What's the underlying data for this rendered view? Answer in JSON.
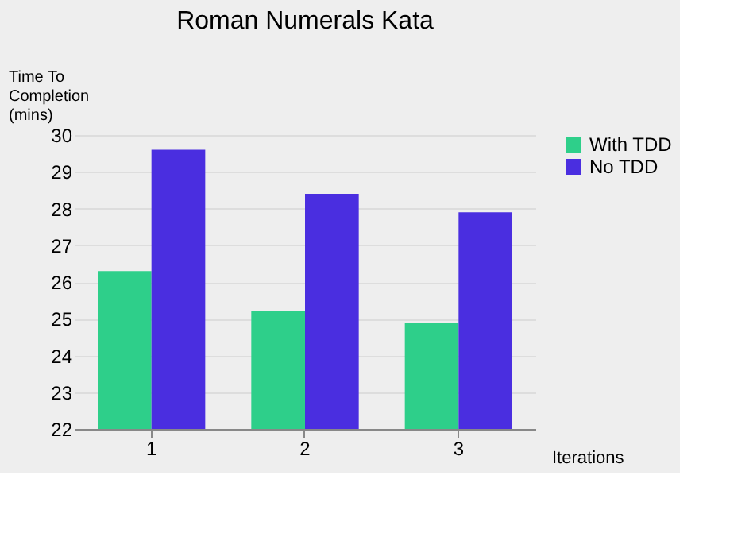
{
  "chart_data": {
    "type": "bar",
    "title": "Roman Numerals Kata",
    "xlabel": "Iterations",
    "ylabel": "Time To Completion (mins)",
    "categories": [
      "1",
      "2",
      "3"
    ],
    "series": [
      {
        "name": "With TDD",
        "color": "#2ecf8a",
        "values": [
          26.3,
          25.2,
          24.9
        ]
      },
      {
        "name": "No TDD",
        "color": "#4a2ee0",
        "values": [
          29.6,
          28.4,
          27.9
        ]
      }
    ],
    "ylim": [
      22,
      30
    ],
    "yticks": [
      22,
      23,
      24,
      25,
      26,
      27,
      28,
      29,
      30
    ],
    "grid": "y",
    "legend": "right"
  }
}
